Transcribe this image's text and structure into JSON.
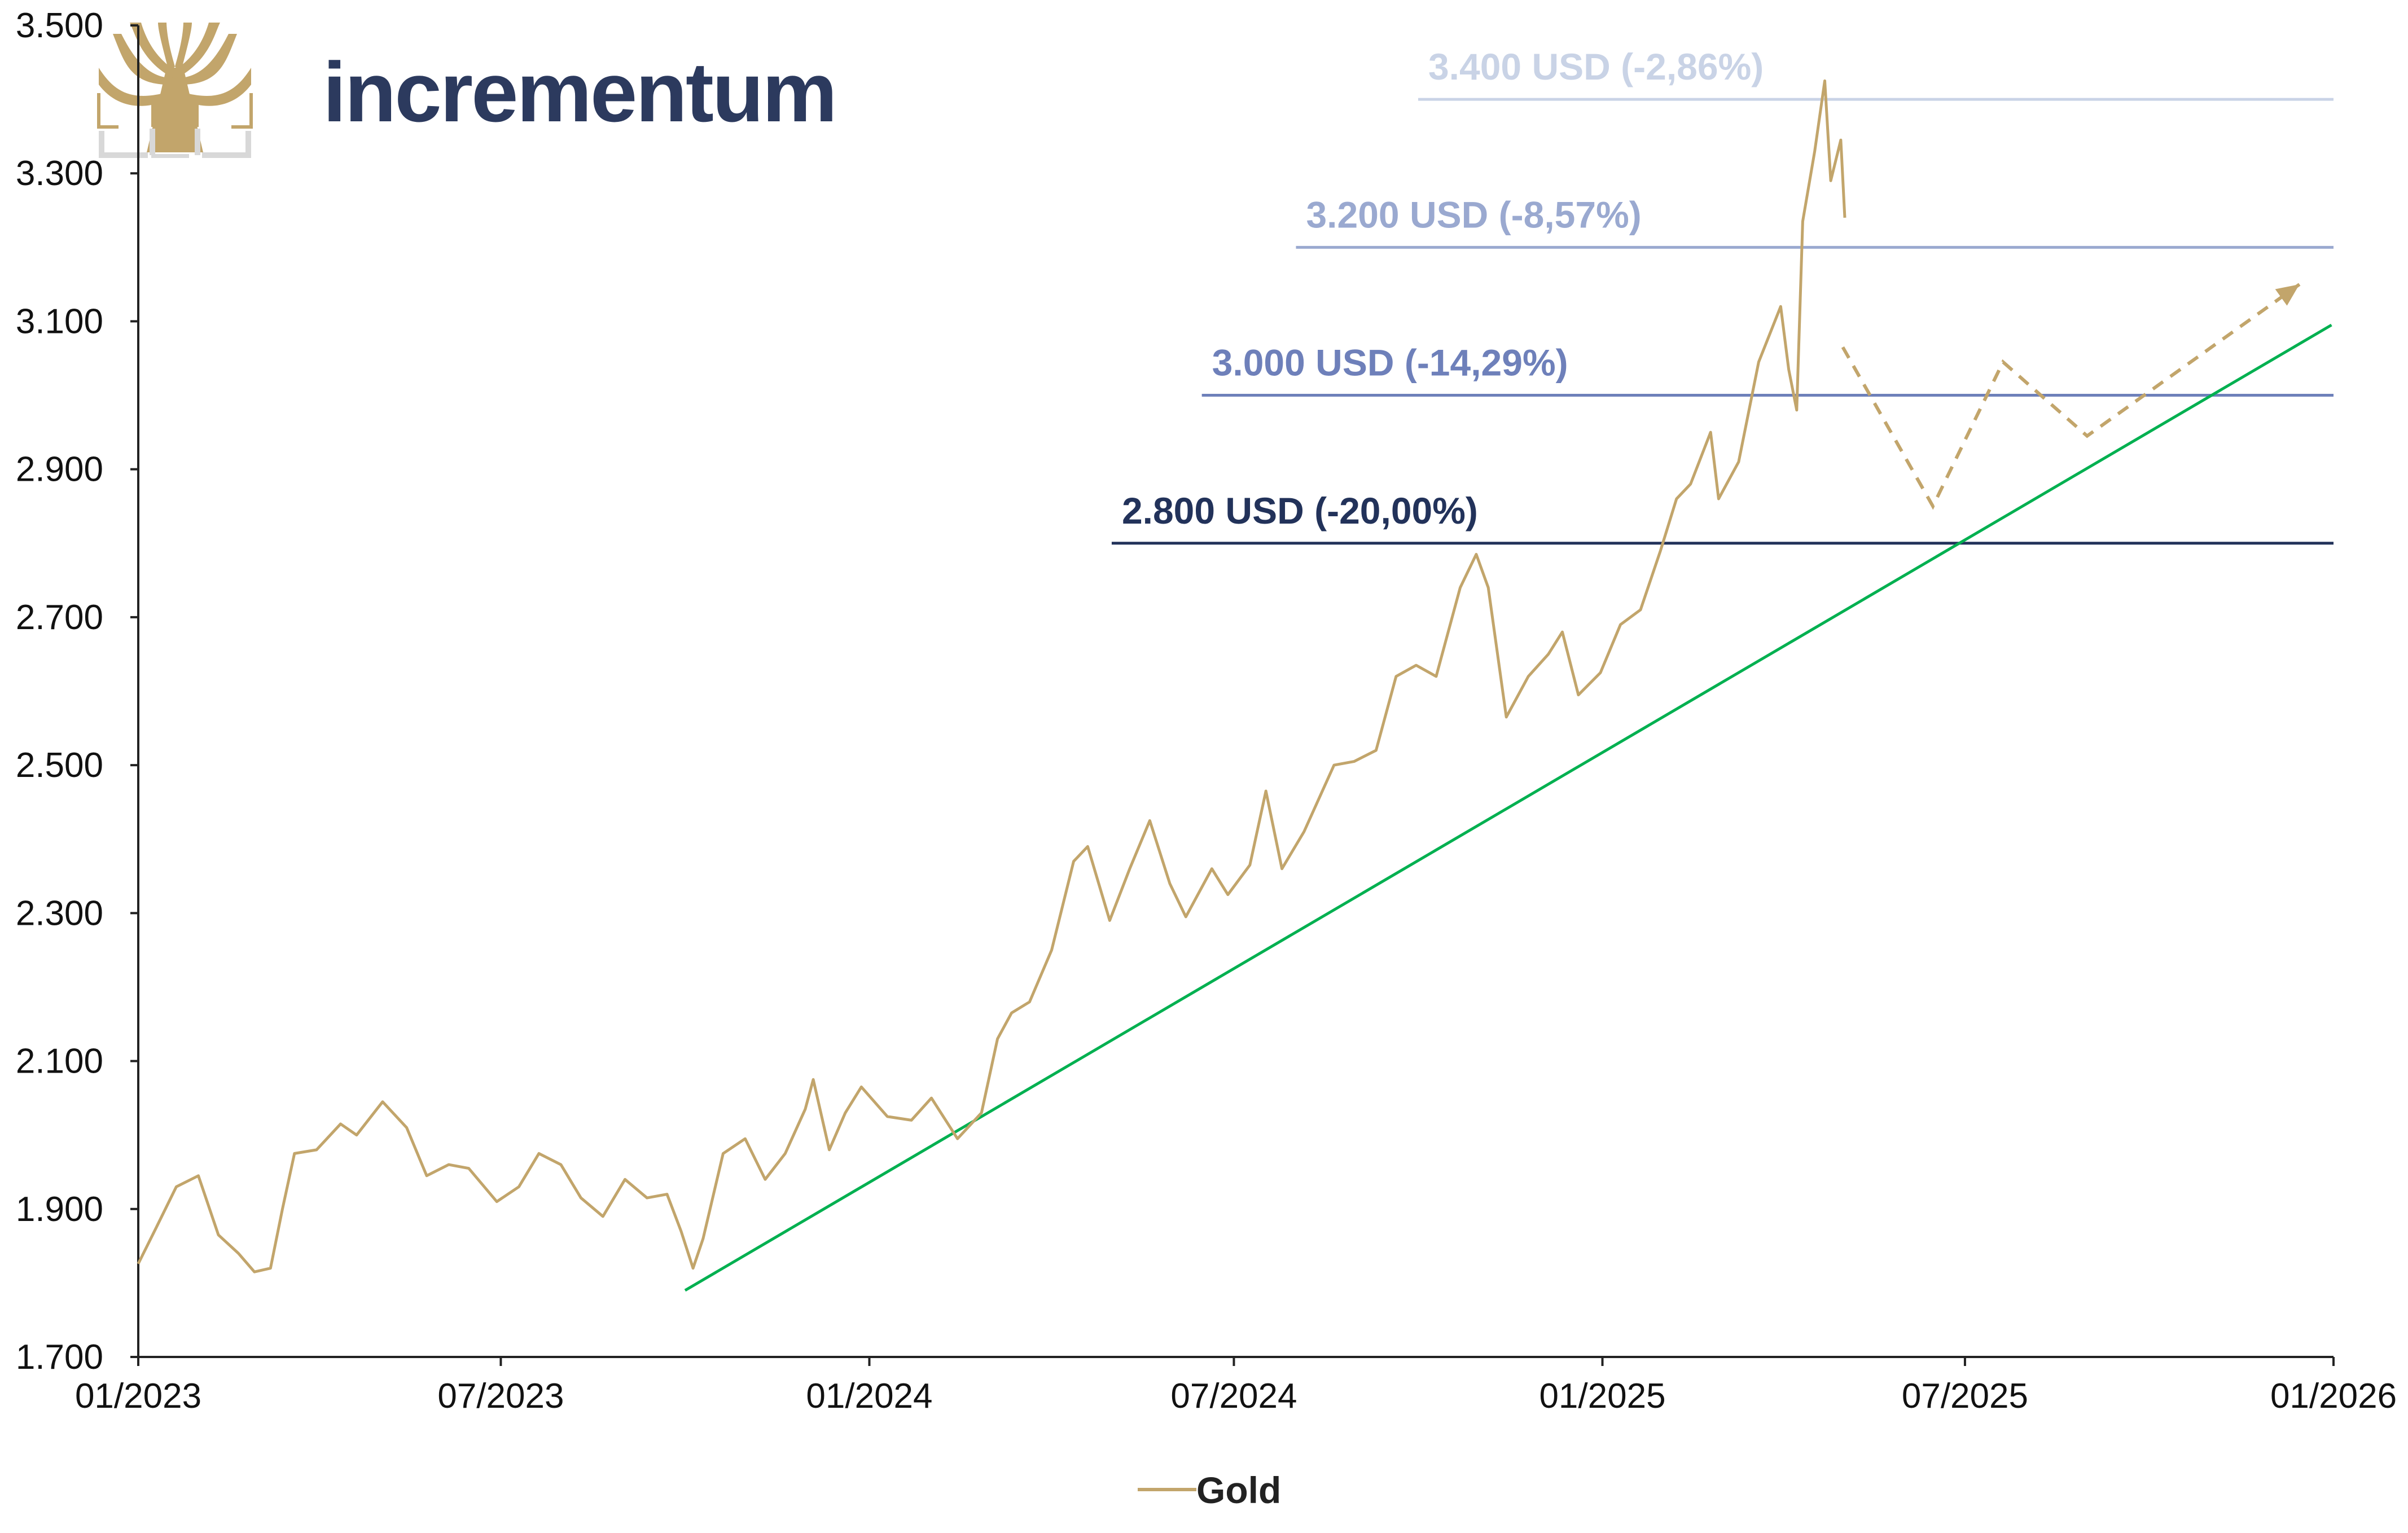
{
  "brand": {
    "name": "incrementum",
    "text_color": "#2c3a5e",
    "icon": "tree-logo-icon",
    "icon_color": "#c2a56b"
  },
  "chart_data": {
    "type": "line",
    "x_axis": {
      "ticks": [
        "01/2023",
        "07/2023",
        "01/2024",
        "07/2024",
        "01/2025",
        "07/2025",
        "01/2026"
      ],
      "tick_dates": [
        "2023-01-01",
        "2023-07-01",
        "2024-01-01",
        "2024-07-01",
        "2025-01-01",
        "2025-07-01",
        "2026-01-01"
      ]
    },
    "y_axis": {
      "ylim": [
        1700,
        3500
      ],
      "ticks": [
        "1.700",
        "1.900",
        "2.100",
        "2.300",
        "2.500",
        "2.700",
        "2.900",
        "3.100",
        "3.300",
        "3.500"
      ],
      "tick_values": [
        1700,
        1900,
        2100,
        2300,
        2500,
        2700,
        2900,
        3100,
        3300,
        3500
      ]
    },
    "grid": false,
    "legend": {
      "position": "bottom-center",
      "label": "Gold"
    },
    "series": [
      {
        "name": "Gold",
        "color": "#c2a56b",
        "points": [
          [
            "2023-01-01",
            1826
          ],
          [
            "2023-01-10",
            1875
          ],
          [
            "2023-01-20",
            1930
          ],
          [
            "2023-01-31",
            1945
          ],
          [
            "2023-02-10",
            1865
          ],
          [
            "2023-02-20",
            1840
          ],
          [
            "2023-02-28",
            1815
          ],
          [
            "2023-03-08",
            1820
          ],
          [
            "2023-03-14",
            1900
          ],
          [
            "2023-03-20",
            1975
          ],
          [
            "2023-03-31",
            1980
          ],
          [
            "2023-04-12",
            2015
          ],
          [
            "2023-04-20",
            2000
          ],
          [
            "2023-05-03",
            2045
          ],
          [
            "2023-05-15",
            2010
          ],
          [
            "2023-05-25",
            1945
          ],
          [
            "2023-06-05",
            1960
          ],
          [
            "2023-06-15",
            1955
          ],
          [
            "2023-06-29",
            1910
          ],
          [
            "2023-07-10",
            1930
          ],
          [
            "2023-07-20",
            1975
          ],
          [
            "2023-07-31",
            1960
          ],
          [
            "2023-08-10",
            1915
          ],
          [
            "2023-08-21",
            1890
          ],
          [
            "2023-09-01",
            1940
          ],
          [
            "2023-09-12",
            1915
          ],
          [
            "2023-09-22",
            1920
          ],
          [
            "2023-09-29",
            1870
          ],
          [
            "2023-10-05",
            1820
          ],
          [
            "2023-10-10",
            1860
          ],
          [
            "2023-10-20",
            1975
          ],
          [
            "2023-10-31",
            1995
          ],
          [
            "2023-11-10",
            1940
          ],
          [
            "2023-11-20",
            1975
          ],
          [
            "2023-11-30",
            2035
          ],
          [
            "2023-12-04",
            2075
          ],
          [
            "2023-12-12",
            1980
          ],
          [
            "2023-12-20",
            2030
          ],
          [
            "2023-12-28",
            2065
          ],
          [
            "2024-01-10",
            2025
          ],
          [
            "2024-01-22",
            2020
          ],
          [
            "2024-02-01",
            2050
          ],
          [
            "2024-02-14",
            1995
          ],
          [
            "2024-02-26",
            2030
          ],
          [
            "2024-03-05",
            2130
          ],
          [
            "2024-03-12",
            2165
          ],
          [
            "2024-03-21",
            2180
          ],
          [
            "2024-04-01",
            2250
          ],
          [
            "2024-04-12",
            2370
          ],
          [
            "2024-04-19",
            2390
          ],
          [
            "2024-04-30",
            2290
          ],
          [
            "2024-05-10",
            2360
          ],
          [
            "2024-05-20",
            2425
          ],
          [
            "2024-05-30",
            2340
          ],
          [
            "2024-06-07",
            2295
          ],
          [
            "2024-06-20",
            2360
          ],
          [
            "2024-06-28",
            2325
          ],
          [
            "2024-07-09",
            2365
          ],
          [
            "2024-07-17",
            2465
          ],
          [
            "2024-07-25",
            2360
          ],
          [
            "2024-08-05",
            2410
          ],
          [
            "2024-08-20",
            2500
          ],
          [
            "2024-08-30",
            2505
          ],
          [
            "2024-09-10",
            2520
          ],
          [
            "2024-09-20",
            2620
          ],
          [
            "2024-09-30",
            2635
          ],
          [
            "2024-10-10",
            2620
          ],
          [
            "2024-10-22",
            2740
          ],
          [
            "2024-10-30",
            2785
          ],
          [
            "2024-11-05",
            2740
          ],
          [
            "2024-11-14",
            2565
          ],
          [
            "2024-11-25",
            2620
          ],
          [
            "2024-12-05",
            2650
          ],
          [
            "2024-12-12",
            2680
          ],
          [
            "2024-12-20",
            2595
          ],
          [
            "2024-12-31",
            2625
          ],
          [
            "2025-01-10",
            2690
          ],
          [
            "2025-01-20",
            2710
          ],
          [
            "2025-01-30",
            2790
          ],
          [
            "2025-02-07",
            2860
          ],
          [
            "2025-02-14",
            2880
          ],
          [
            "2025-02-24",
            2950
          ],
          [
            "2025-02-28",
            2860
          ],
          [
            "2025-03-10",
            2910
          ],
          [
            "2025-03-20",
            3045
          ],
          [
            "2025-03-31",
            3120
          ],
          [
            "2025-04-04",
            3035
          ],
          [
            "2025-04-08",
            2980
          ],
          [
            "2025-04-11",
            3235
          ],
          [
            "2025-04-17",
            3330
          ],
          [
            "2025-04-22",
            3425
          ],
          [
            "2025-04-25",
            3290
          ],
          [
            "2025-04-30",
            3345
          ],
          [
            "2025-05-02",
            3240
          ]
        ]
      }
    ],
    "projection": {
      "color": "#c2a56b",
      "style": "dashed",
      "points": [
        [
          "2025-05-01",
          3065
        ],
        [
          "2025-06-15",
          2850
        ],
        [
          "2025-07-20",
          3045
        ],
        [
          "2025-08-31",
          2945
        ],
        [
          "2025-12-15",
          3150
        ]
      ]
    },
    "trendline": {
      "color": "#00b050",
      "start": [
        "2023-10-01",
        1790
      ],
      "end": [
        "2025-12-31",
        3095
      ]
    },
    "levels": [
      {
        "value": 3400,
        "label": "3.400 USD (-2,86%)",
        "color": "#c9d3e6",
        "label_color": "#c9d3e6",
        "start": "2024-10-01"
      },
      {
        "value": 3200,
        "label": "3.200 USD (-8,57%)",
        "color": "#9aa9d0",
        "label_color": "#9aa9d0",
        "start": "2024-08-01"
      },
      {
        "value": 3000,
        "label": "3.000 USD (-14,29%)",
        "color": "#6e80ba",
        "label_color": "#6e80ba",
        "start": "2024-06-15"
      },
      {
        "value": 2800,
        "label": "2.800 USD (-20,00%)",
        "color": "#22325a",
        "label_color": "#22325a",
        "start": "2024-05-01"
      }
    ]
  }
}
